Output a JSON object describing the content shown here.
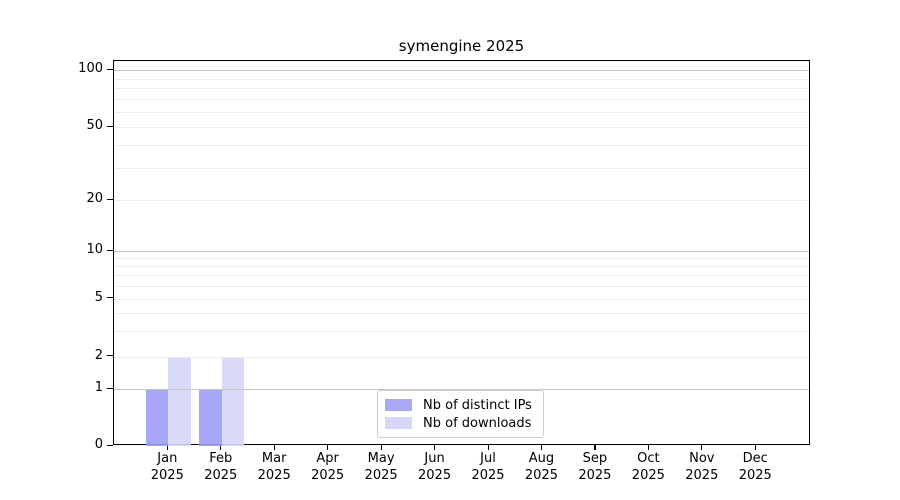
{
  "title": "symengine 2025",
  "chart_data": {
    "type": "bar",
    "title": "symengine 2025",
    "categories": [
      "Jan",
      "Feb",
      "Mar",
      "Apr",
      "May",
      "Jun",
      "Jul",
      "Aug",
      "Sep",
      "Oct",
      "Nov",
      "Dec"
    ],
    "category_year": "2025",
    "series": [
      {
        "name": "Nb of distinct IPs",
        "color": "#9d9df6",
        "legend_color": "#a9a9f4",
        "values": [
          1,
          1,
          0,
          0,
          0,
          0,
          0,
          0,
          0,
          0,
          0,
          0
        ]
      },
      {
        "name": "Nb of downloads",
        "color": "#d5d5f7",
        "legend_color": "#d6d6f8",
        "values": [
          2,
          2,
          0,
          0,
          0,
          0,
          0,
          0,
          0,
          0,
          0,
          0
        ]
      }
    ],
    "y_ticks": [
      0,
      1,
      2,
      5,
      10,
      20,
      50,
      100
    ],
    "y_minor_gridlines": [
      2,
      3,
      4,
      5,
      6,
      7,
      8,
      9,
      20,
      30,
      40,
      50,
      60,
      70,
      80,
      90
    ],
    "y_major_gridlines": [
      1,
      10,
      100
    ],
    "y_scale": "log above 1, linear 0-1",
    "ylim": [
      0,
      115
    ],
    "grid": true,
    "legend_position": "lower center",
    "colors": {
      "grid_minor": "#ededed",
      "grid_major": "#c6c6c6",
      "spine": "#000000",
      "background": "#ffffff"
    }
  }
}
